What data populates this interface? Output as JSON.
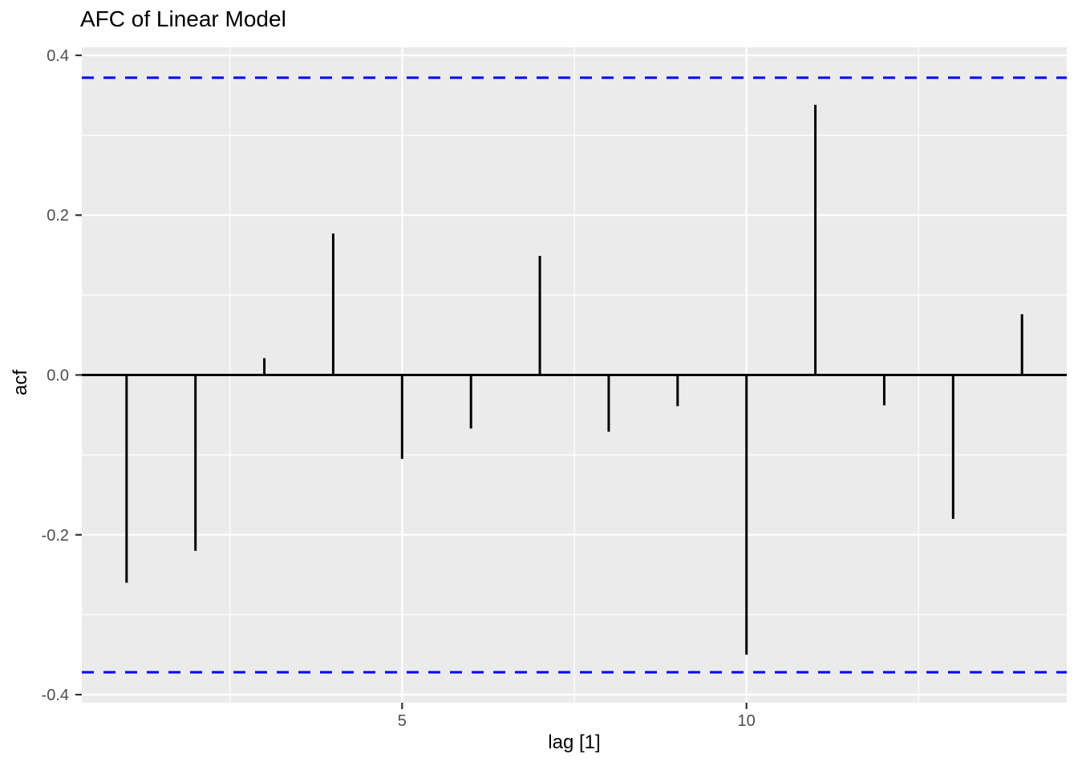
{
  "figure": {
    "title": "AFC of Linear Model",
    "xlabel": "lag [1]",
    "ylabel": "acf"
  },
  "chart_data": {
    "type": "bar",
    "subtype": "acf-lollipop",
    "title": "AFC of Linear Model",
    "xlabel": "lag [1]",
    "ylabel": "acf",
    "x": [
      1,
      2,
      3,
      4,
      5,
      6,
      7,
      8,
      9,
      10,
      11,
      12,
      13,
      14
    ],
    "values": [
      -0.26,
      -0.22,
      0.021,
      0.177,
      -0.105,
      -0.067,
      0.149,
      -0.071,
      -0.039,
      -0.35,
      0.338,
      -0.038,
      -0.18,
      0.076
    ],
    "confidence_upper": 0.372,
    "confidence_lower": -0.372,
    "xlim": [
      0.35,
      14.65
    ],
    "ylim": [
      -0.41,
      0.41
    ],
    "x_major_ticks": [
      5,
      10
    ],
    "x_tick_labels": [
      "5",
      "10"
    ],
    "x_minor_gridlines": [
      2.5,
      7.5,
      12.5
    ],
    "y_major_ticks": [
      -0.4,
      -0.2,
      0,
      0.2,
      0.4
    ],
    "y_tick_labels": [
      "-0.4",
      "-0.2",
      "0.0",
      "0.2",
      "0.4"
    ],
    "y_minor_gridlines": [
      -0.3,
      -0.1,
      0.1,
      0.3
    ],
    "grid": true,
    "legend": false,
    "colors": {
      "background": "#FFFFFF",
      "panel": "#EBEBEB",
      "grid": "#FFFFFF",
      "bar": "#000000",
      "zero_line": "#000000",
      "confidence_line": "#0000FF",
      "tick_mark": "#333333",
      "axis_text": "#4D4D4D",
      "title_text": "#000000"
    }
  }
}
